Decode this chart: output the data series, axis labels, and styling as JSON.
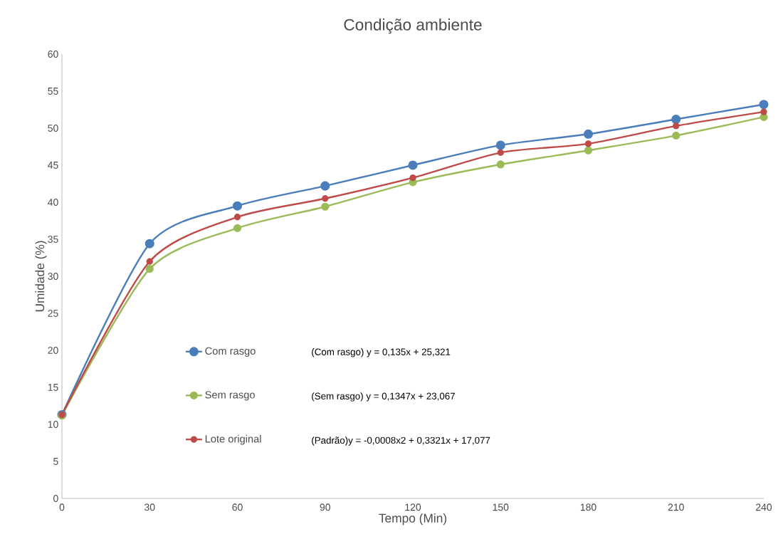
{
  "chart_data": {
    "type": "line",
    "title": "Condição ambiente",
    "xlabel": "Tempo (Min)",
    "ylabel": "Umidade (%)",
    "x": [
      0,
      30,
      60,
      90,
      120,
      150,
      180,
      210,
      240
    ],
    "series": [
      {
        "name": "Com rasgo",
        "color": "#4a7ebb",
        "values": [
          11.3,
          34.4,
          39.5,
          42.2,
          45.0,
          47.7,
          49.2,
          51.2,
          53.2
        ]
      },
      {
        "name": "Sem rasgo",
        "color": "#9bbb59",
        "values": [
          11.2,
          31.0,
          36.5,
          39.4,
          42.7,
          45.1,
          47.0,
          49.0,
          51.5
        ]
      },
      {
        "name": "Lote original",
        "color": "#be4b48",
        "values": [
          11.3,
          32.0,
          38.0,
          40.5,
          43.3,
          46.7,
          47.9,
          50.3,
          52.2
        ]
      }
    ],
    "annotations": [
      "(Com rasgo) y = 0,135x + 25,321",
      "(Sem rasgo) y = 0,1347x + 23,067",
      "(Padrão)y = -0,0008x2 + 0,3321x + 17,077"
    ],
    "xlim": [
      0,
      240
    ],
    "xticks": [
      0,
      30,
      60,
      90,
      120,
      150,
      180,
      210,
      240
    ],
    "ylim": [
      0,
      60
    ],
    "yticks": [
      0,
      5,
      10,
      15,
      20,
      25,
      30,
      35,
      40,
      45,
      50,
      55,
      60
    ],
    "legend": "bottom left",
    "marker": "circle",
    "line_style": "solid",
    "grid": false
  }
}
